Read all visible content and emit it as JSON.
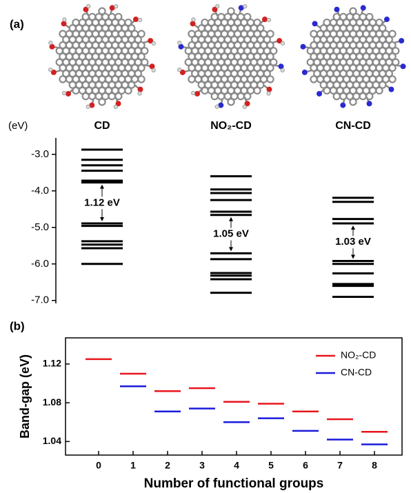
{
  "chart_data": [
    {
      "type": "energy-levels",
      "panel_label": "(a)",
      "y_label": "(eV)",
      "ylim": [
        -7.08,
        -2.55
      ],
      "yticks": [
        {
          "value": -3,
          "label": "-3.0"
        },
        {
          "value": -4,
          "label": "-4.0"
        },
        {
          "value": -5,
          "label": "-5.0"
        },
        {
          "value": -6,
          "label": "-6.0"
        },
        {
          "value": -7,
          "label": "-7.0"
        }
      ],
      "color": "#000000",
      "series": [
        {
          "name": "CD",
          "values": [
            -2.87,
            -3.15,
            -3.3,
            -3.45,
            -3.72,
            -3.77,
            -4.89,
            -4.96,
            -5.38,
            -5.47,
            -5.57,
            -6.0
          ]
        },
        {
          "name": "NO₂-CD",
          "values": [
            -3.6,
            -3.96,
            -4.06,
            -4.25,
            -4.57,
            -4.66,
            -5.71,
            -5.87,
            -6.25,
            -6.32,
            -6.42,
            -6.79
          ]
        },
        {
          "name": "CN-CD",
          "values": [
            -4.19,
            -4.3,
            -4.77,
            -4.89,
            -5.92,
            -6.0,
            -6.26,
            -6.55,
            -6.6,
            -6.9
          ]
        }
      ],
      "gaps": [
        1.12,
        1.05,
        1.03
      ],
      "gap_labels": [
        "1.12 eV",
        "1.05 eV",
        "1.03 eV"
      ]
    },
    {
      "type": "segments",
      "panel_label": "(b)",
      "y_label": "Band-gap (eV)",
      "x_label": "Number of functional groups",
      "x": [
        0,
        1,
        2,
        3,
        4,
        5,
        6,
        7,
        8
      ],
      "xlim": [
        -0.96,
        8.8
      ],
      "xticks": [
        0,
        1,
        2,
        3,
        4,
        5,
        6,
        7,
        8
      ],
      "ylim": [
        1.026,
        1.147
      ],
      "yticks": [
        1.04,
        1.08,
        1.12
      ],
      "legend": "upper right",
      "series": [
        {
          "name": "NO₂-CD",
          "color": "#e8141c",
          "values": [
            1.125,
            1.11,
            1.092,
            1.095,
            1.081,
            1.079,
            1.071,
            1.063,
            1.05
          ]
        },
        {
          "name": "CN-CD",
          "color": "#1a1adb",
          "values": [
            null,
            1.097,
            1.071,
            1.074,
            1.06,
            1.064,
            1.051,
            1.042,
            1.037
          ]
        }
      ]
    }
  ]
}
